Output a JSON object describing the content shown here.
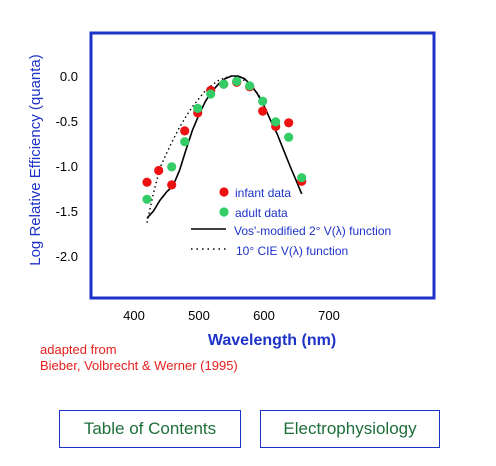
{
  "chart_data": {
    "type": "scatter",
    "xlabel": "Wavelength (nm)",
    "ylabel": "Log Relative Efficiency (quanta)",
    "xlim": [
      350,
      740
    ],
    "ylim": [
      -2.5,
      0.45
    ],
    "x_ticks": [
      "400",
      "500",
      "600",
      "700"
    ],
    "y_ticks": [
      "0.0",
      "-0.5",
      "-1.0",
      "-1.5",
      "-2.0"
    ],
    "grid": false,
    "legend_position": "center-right",
    "series": [
      {
        "name": "infant data",
        "kind": "points",
        "color": "#ee1111",
        "x": [
          420,
          438,
          458,
          478,
          498,
          518,
          538,
          558,
          578,
          598,
          618,
          638,
          658
        ],
        "y": [
          -1.18,
          -1.05,
          -1.21,
          -0.61,
          -0.41,
          -0.16,
          -0.09,
          -0.07,
          -0.12,
          -0.39,
          -0.56,
          -0.52,
          -1.17
        ]
      },
      {
        "name": "adult data",
        "kind": "points",
        "color": "#33cc66",
        "x": [
          420,
          458,
          478,
          498,
          518,
          538,
          558,
          578,
          598,
          618,
          638,
          658
        ],
        "y": [
          -1.37,
          -1.01,
          -0.73,
          -0.36,
          -0.2,
          -0.09,
          -0.06,
          -0.11,
          -0.28,
          -0.51,
          -0.68,
          -1.13
        ]
      },
      {
        "name": "Vos'-modified 2° V(λ) function",
        "kind": "line",
        "style": "solid",
        "color": "#000000",
        "x": [
          420,
          430,
          440,
          450,
          460,
          470,
          480,
          490,
          500,
          510,
          520,
          530,
          540,
          550,
          560,
          570,
          580,
          590,
          600,
          610,
          620,
          630,
          640,
          650,
          658
        ],
        "y": [
          -1.58,
          -1.5,
          -1.38,
          -1.29,
          -1.22,
          -1.05,
          -0.82,
          -0.6,
          -0.43,
          -0.28,
          -0.17,
          -0.09,
          -0.03,
          0.0,
          0.0,
          -0.03,
          -0.1,
          -0.2,
          -0.33,
          -0.49,
          -0.64,
          -0.82,
          -1.0,
          -1.17,
          -1.31
        ]
      },
      {
        "name": "10° CIE V(λ) function",
        "kind": "line",
        "style": "dotted",
        "color": "#000000",
        "x": [
          420,
          430,
          440,
          450,
          460,
          470,
          480,
          490,
          500,
          510,
          520,
          530,
          540,
          550,
          560,
          570,
          580,
          590,
          600
        ],
        "y": [
          -1.63,
          -1.3,
          -1.02,
          -0.86,
          -0.71,
          -0.57,
          -0.45,
          -0.34,
          -0.25,
          -0.16,
          -0.1,
          -0.05,
          -0.02,
          0.0,
          -0.02,
          -0.05,
          -0.11,
          -0.19,
          -0.3
        ]
      }
    ]
  },
  "credit": {
    "line1": "adapted from",
    "line2": "Bieber, Volbrecht & Werner (1995)"
  },
  "nav": {
    "toc_label": "Table of Contents",
    "electro_label": "Electrophysiology"
  },
  "colors": {
    "frame": "#1d33c8",
    "axis_text": "#1d33c8",
    "tick_text": "#000000",
    "credit_text": "#e8201e",
    "nav_text": "#1e6e3a"
  }
}
